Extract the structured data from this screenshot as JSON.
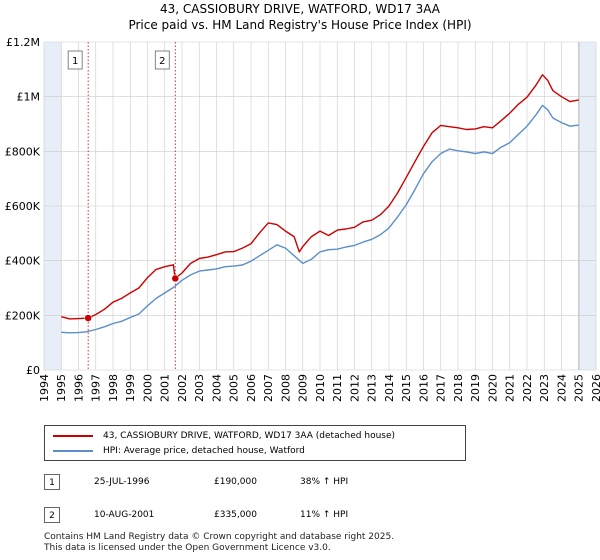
{
  "header": {
    "title_line1": "43, CASSIOBURY DRIVE, WATFORD, WD17 3AA",
    "title_line2": "Price paid vs. HM Land Registry's House Price Index (HPI)"
  },
  "chart_data": {
    "type": "line",
    "xlim": [
      1994,
      2026
    ],
    "ylim": [
      0,
      1200000
    ],
    "x_ticks": [
      1994,
      1995,
      1996,
      1997,
      1998,
      1999,
      2000,
      2001,
      2002,
      2003,
      2004,
      2005,
      2006,
      2007,
      2008,
      2009,
      2010,
      2011,
      2012,
      2013,
      2014,
      2015,
      2016,
      2017,
      2018,
      2019,
      2020,
      2021,
      2022,
      2023,
      2024,
      2025,
      2026
    ],
    "y_ticks": [
      {
        "value": 0,
        "label": "£0"
      },
      {
        "value": 200000,
        "label": "£200K"
      },
      {
        "value": 400000,
        "label": "£400K"
      },
      {
        "value": 600000,
        "label": "£600K"
      },
      {
        "value": 800000,
        "label": "£800K"
      },
      {
        "value": 1000000,
        "label": "£1M"
      },
      {
        "value": 1200000,
        "label": "£1.2M"
      }
    ],
    "grid": true,
    "data_end": 2025.0,
    "series": [
      {
        "name": "43, CASSIOBURY DRIVE, WATFORD, WD17 3AA (detached house)",
        "color": "#cc0000",
        "x": [
          1995.0,
          1995.5,
          1996.0,
          1996.56,
          1997.0,
          1997.5,
          1998.0,
          1998.5,
          1999.0,
          1999.5,
          2000.0,
          2000.5,
          2001.0,
          2001.5,
          2001.6,
          2002.0,
          2002.5,
          2003.0,
          2003.5,
          2004.0,
          2004.5,
          2005.0,
          2005.5,
          2006.0,
          2006.5,
          2007.0,
          2007.5,
          2008.0,
          2008.5,
          2008.8,
          2009.0,
          2009.5,
          2010.0,
          2010.5,
          2011.0,
          2011.5,
          2012.0,
          2012.5,
          2013.0,
          2013.5,
          2014.0,
          2014.5,
          2015.0,
          2015.5,
          2016.0,
          2016.5,
          2017.0,
          2017.5,
          2018.0,
          2018.5,
          2019.0,
          2019.5,
          2020.0,
          2020.5,
          2021.0,
          2021.5,
          2022.0,
          2022.5,
          2022.9,
          2023.2,
          2023.5,
          2024.0,
          2024.5,
          2025.0
        ],
        "values": [
          195000,
          187000,
          188000,
          190000,
          203000,
          222000,
          248000,
          262000,
          282000,
          300000,
          338000,
          368000,
          378000,
          385000,
          335000,
          355000,
          390000,
          408000,
          413000,
          422000,
          432000,
          433000,
          446000,
          462000,
          502000,
          538000,
          532000,
          508000,
          488000,
          432000,
          452000,
          488000,
          508000,
          492000,
          512000,
          516000,
          522000,
          542000,
          548000,
          568000,
          600000,
          648000,
          705000,
          762000,
          818000,
          868000,
          895000,
          890000,
          886000,
          880000,
          882000,
          890000,
          886000,
          912000,
          940000,
          972000,
          998000,
          1040000,
          1080000,
          1060000,
          1022000,
          1000000,
          982000,
          988000
        ]
      },
      {
        "name": "HPI: Average price, detached house, Watford",
        "color": "#5b8fc9",
        "x": [
          1995.0,
          1995.5,
          1996.0,
          1996.5,
          1997.0,
          1997.5,
          1998.0,
          1998.5,
          1999.0,
          1999.5,
          2000.0,
          2000.5,
          2001.0,
          2001.5,
          2002.0,
          2002.5,
          2003.0,
          2003.5,
          2004.0,
          2004.5,
          2005.0,
          2005.5,
          2006.0,
          2006.5,
          2007.0,
          2007.5,
          2008.0,
          2008.5,
          2009.0,
          2009.5,
          2010.0,
          2010.5,
          2011.0,
          2011.5,
          2012.0,
          2012.5,
          2013.0,
          2013.5,
          2014.0,
          2014.5,
          2015.0,
          2015.5,
          2016.0,
          2016.5,
          2017.0,
          2017.5,
          2018.0,
          2018.5,
          2019.0,
          2019.5,
          2020.0,
          2020.5,
          2021.0,
          2021.5,
          2022.0,
          2022.5,
          2022.9,
          2023.2,
          2023.5,
          2024.0,
          2024.5,
          2025.0
        ],
        "values": [
          138000,
          136000,
          137000,
          140000,
          148000,
          158000,
          170000,
          178000,
          192000,
          205000,
          235000,
          262000,
          282000,
          302000,
          328000,
          348000,
          362000,
          366000,
          370000,
          378000,
          380000,
          384000,
          398000,
          418000,
          438000,
          458000,
          446000,
          418000,
          390000,
          405000,
          432000,
          440000,
          442000,
          450000,
          456000,
          468000,
          478000,
          495000,
          520000,
          560000,
          605000,
          660000,
          718000,
          762000,
          792000,
          808000,
          802000,
          798000,
          792000,
          798000,
          792000,
          815000,
          832000,
          862000,
          892000,
          932000,
          968000,
          952000,
          922000,
          905000,
          892000,
          896000
        ]
      }
    ],
    "sales": [
      {
        "id": "1",
        "x": 1996.56,
        "value": 190000
      },
      {
        "id": "2",
        "x": 2001.61,
        "value": 335000
      }
    ]
  },
  "legend": {
    "red_label": "43, CASSIOBURY DRIVE, WATFORD, WD17 3AA (detached house)",
    "blue_label": "HPI: Average price, detached house, Watford"
  },
  "table": [
    {
      "id": "1",
      "date": "25-JUL-1996",
      "price": "£190,000",
      "hpi": "38% ↑ HPI"
    },
    {
      "id": "2",
      "date": "10-AUG-2001",
      "price": "£335,000",
      "hpi": "11% ↑ HPI"
    }
  ],
  "footer": {
    "line1": "Contains HM Land Registry data © Crown copyright and database right 2025.",
    "line2": "This data is licensed under the Open Government Licence v3.0."
  },
  "colors": {
    "red": "#cc0000",
    "blue": "#5b8fc9",
    "grid": "#cccccc",
    "pre_shade": "#e8eef8"
  }
}
